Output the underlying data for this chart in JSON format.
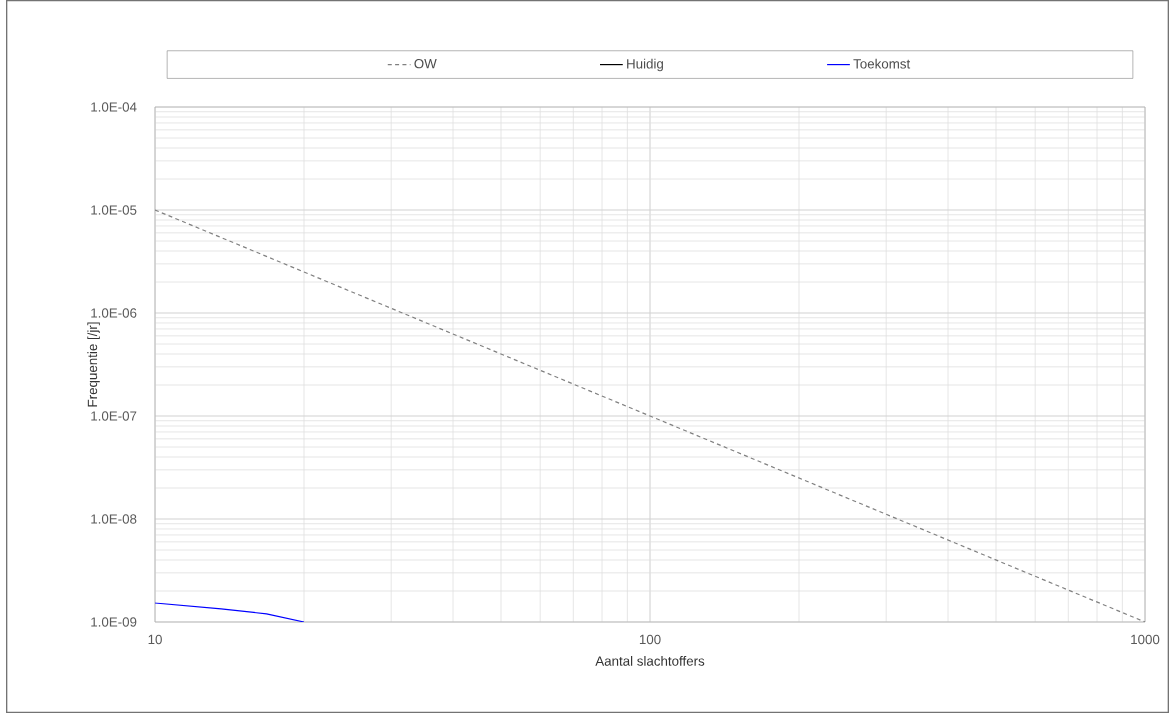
{
  "chart_data": {
    "type": "line",
    "xlabel": "Aantal slachtoffers",
    "ylabel": "Frequentie [/jr]",
    "log": "xy",
    "grid": true,
    "legend": "top",
    "marker": "none",
    "xlim": [
      10,
      1000
    ],
    "xticks": [
      10,
      100,
      1000
    ],
    "ylim": [
      1e-09,
      0.0001
    ],
    "yticks": [
      {
        "value": 1e-09,
        "label": "1.0E-09"
      },
      {
        "value": 1e-08,
        "label": "1.0E-08"
      },
      {
        "value": 1e-07,
        "label": "1.0E-07"
      },
      {
        "value": 1e-06,
        "label": "1.0E-06"
      },
      {
        "value": 1e-05,
        "label": "1.0E-05"
      },
      {
        "value": 0.0001,
        "label": "1.0E-04"
      }
    ],
    "series": [
      {
        "name": "OW",
        "color": "#808080",
        "line_style": "dashed",
        "x": [
          10,
          100,
          1000
        ],
        "values": [
          1e-05,
          1e-07,
          1e-09
        ]
      },
      {
        "name": "Huidig",
        "color": "#000000",
        "line_style": "solid"
      },
      {
        "name": "Toekomst",
        "color": "#0000ff",
        "line_style": "solid",
        "x": [
          10,
          13.6,
          16.8,
          20
        ],
        "values": [
          1.53e-09,
          1.34e-09,
          1.2e-09,
          1e-09
        ]
      }
    ]
  }
}
